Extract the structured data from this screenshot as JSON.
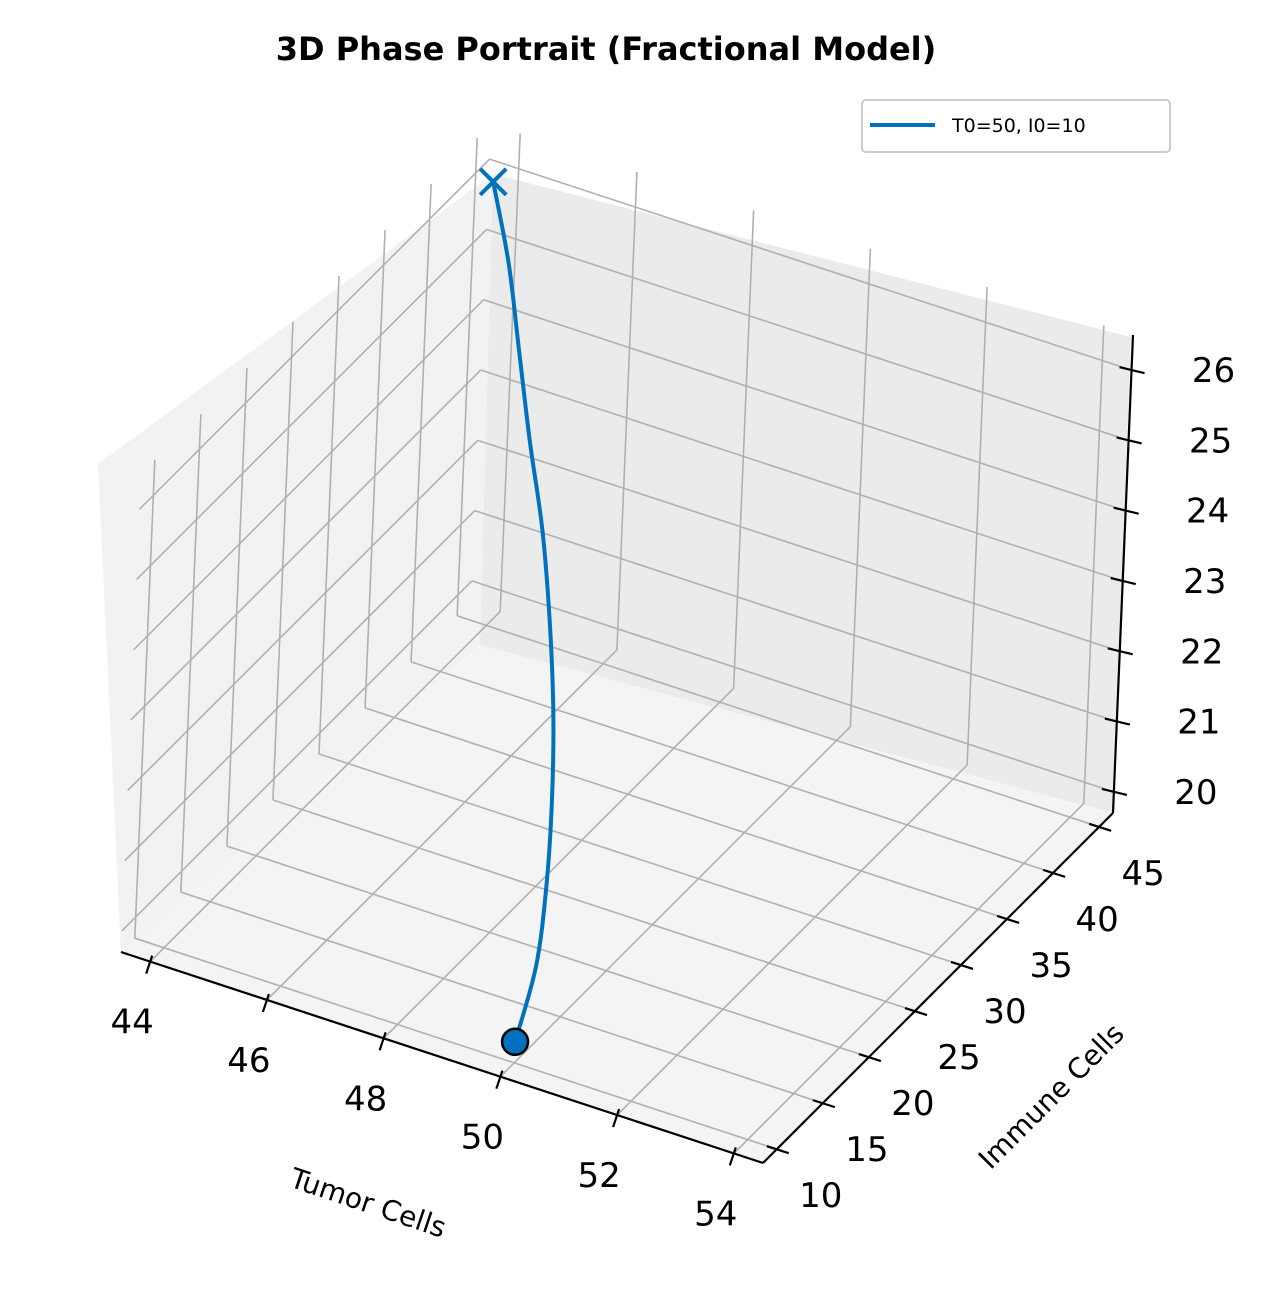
{
  "chart_data": {
    "type": "line",
    "projection": "3d",
    "title": "3D Phase Portrait (Fractional Model)",
    "xlabel": "Tumor Cells",
    "ylabel": "Immune Cells",
    "zlabel": "",
    "x_ticks": [
      "44",
      "46",
      "48",
      "50",
      "52",
      "54"
    ],
    "y_ticks": [
      "10",
      "15",
      "20",
      "25",
      "30",
      "35",
      "40",
      "45"
    ],
    "z_ticks": [
      "20",
      "21",
      "22",
      "23",
      "24",
      "25",
      "26"
    ],
    "xlim": [
      43.5,
      54.5
    ],
    "ylim": [
      8.5,
      46.5
    ],
    "zlim": [
      19.7,
      26.5
    ],
    "grid": true,
    "legend_position": "top-right",
    "series": [
      {
        "name": "T0=50, I0=10",
        "color": "#0072bd",
        "start_marker": "circle",
        "end_marker": "x",
        "points": [
          {
            "x": 50.0,
            "y": 10.0,
            "z": 20.0
          },
          {
            "x": 49.9,
            "y": 12.7,
            "z": 20.7
          },
          {
            "x": 49.6,
            "y": 15.5,
            "z": 21.4
          },
          {
            "x": 49.2,
            "y": 18.4,
            "z": 22.1
          },
          {
            "x": 48.7,
            "y": 21.5,
            "z": 22.8
          },
          {
            "x": 48.1,
            "y": 24.7,
            "z": 23.5
          },
          {
            "x": 47.4,
            "y": 28.1,
            "z": 24.2
          },
          {
            "x": 46.6,
            "y": 31.6,
            "z": 24.8
          },
          {
            "x": 45.8,
            "y": 35.3,
            "z": 25.4
          },
          {
            "x": 45.0,
            "y": 39.1,
            "z": 25.9
          },
          {
            "x": 44.1,
            "y": 43.0,
            "z": 26.3
          }
        ]
      }
    ]
  }
}
